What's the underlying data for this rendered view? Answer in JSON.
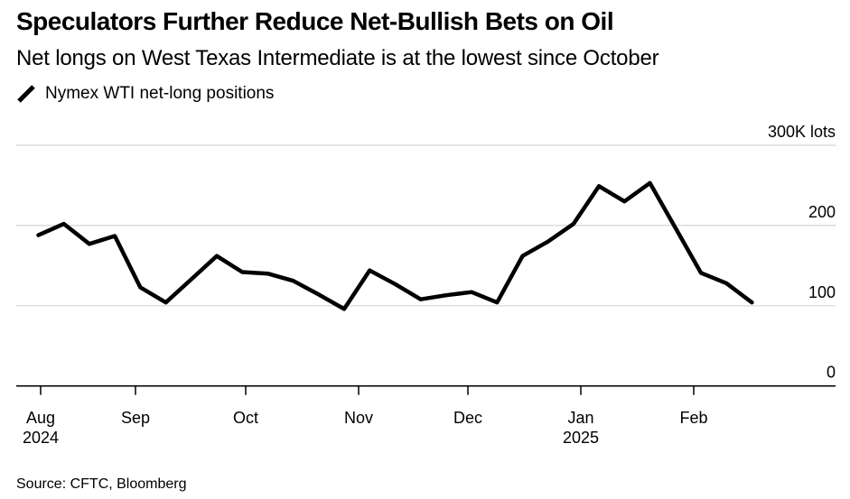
{
  "header": {
    "title": "Speculators Further Reduce Net-Bullish Bets on Oil",
    "subtitle": "Net longs on West Texas Intermediate is at the lowest since October"
  },
  "legend": {
    "label": "Nymex WTI net-long positions",
    "series_color": "#000000"
  },
  "chart_data": {
    "type": "line",
    "title": "Nymex WTI net-long positions",
    "unit": "K lots",
    "x": [
      "2024-08-06",
      "2024-08-13",
      "2024-08-20",
      "2024-08-27",
      "2024-09-03",
      "2024-09-10",
      "2024-09-17",
      "2024-09-24",
      "2024-10-01",
      "2024-10-08",
      "2024-10-15",
      "2024-10-22",
      "2024-10-29",
      "2024-11-05",
      "2024-11-12",
      "2024-11-19",
      "2024-11-26",
      "2024-12-03",
      "2024-12-10",
      "2024-12-17",
      "2024-12-24",
      "2024-12-31",
      "2025-01-07",
      "2025-01-14",
      "2025-01-21",
      "2025-01-28",
      "2025-02-04",
      "2025-02-11",
      "2025-02-18"
    ],
    "values": [
      188,
      202,
      177,
      187,
      123,
      104,
      133,
      162,
      142,
      140,
      131,
      114,
      96,
      144,
      127,
      108,
      113,
      117,
      104,
      162,
      180,
      202,
      249,
      230,
      253,
      197,
      141,
      128,
      104
    ],
    "ylim": [
      0,
      300
    ],
    "yticks": [
      {
        "value": 300,
        "label": "300K lots"
      },
      {
        "value": 200,
        "label": "200"
      },
      {
        "value": 100,
        "label": "100"
      },
      {
        "value": 0,
        "label": "0"
      }
    ],
    "xticks": [
      {
        "label": "Aug",
        "year": "2024"
      },
      {
        "label": "Sep"
      },
      {
        "label": "Oct"
      },
      {
        "label": "Nov"
      },
      {
        "label": "Dec"
      },
      {
        "label": "Jan",
        "year": "2025"
      },
      {
        "label": "Feb"
      }
    ],
    "grid": "horizontal",
    "grid_color": "#d4d4d4",
    "line_color": "#000000",
    "line_width": 4.5,
    "legend_position": "top-left"
  },
  "footer": {
    "source": "Source: CFTC, Bloomberg"
  }
}
